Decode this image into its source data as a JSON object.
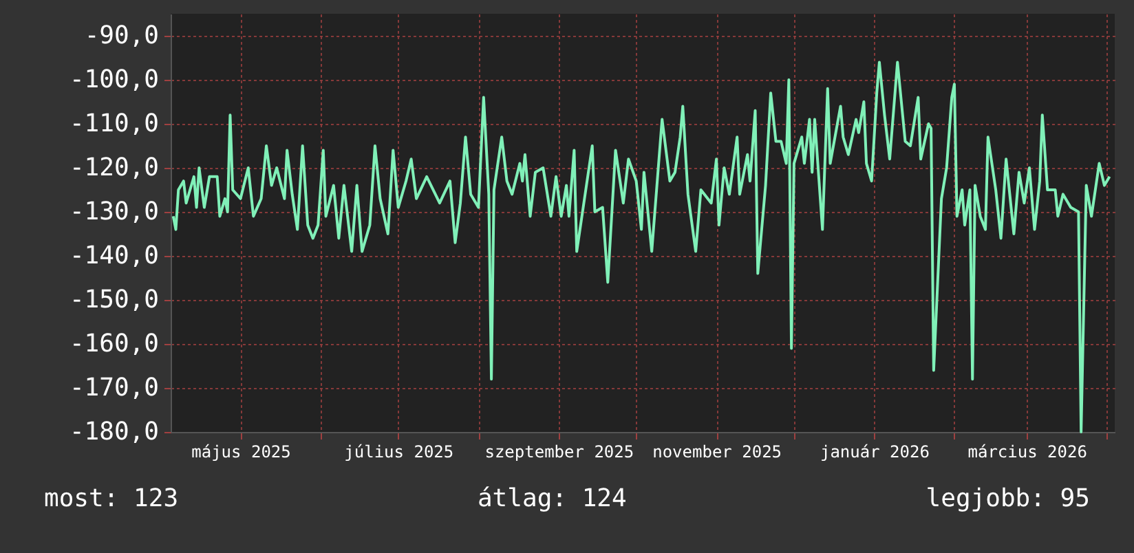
{
  "chart_data": {
    "type": "line",
    "grid": true,
    "marker": "none",
    "line_style": "solid",
    "xlim": [
      "2025-04-04",
      "2026-04-04"
    ],
    "xticks": [
      {
        "value": "2025-05-01",
        "label": "május 2025"
      },
      {
        "value": "2025-06-01",
        "label": null
      },
      {
        "value": "2025-07-01",
        "label": "július 2025"
      },
      {
        "value": "2025-08-01",
        "label": null
      },
      {
        "value": "2025-09-01",
        "label": "szeptember 2025"
      },
      {
        "value": "2025-10-01",
        "label": null
      },
      {
        "value": "2025-11-01",
        "label": "november 2025"
      },
      {
        "value": "2025-12-01",
        "label": null
      },
      {
        "value": "2026-01-01",
        "label": "január 2026"
      },
      {
        "value": "2026-02-01",
        "label": null
      },
      {
        "value": "2026-03-01",
        "label": "március 2026"
      },
      {
        "value": "2026-04-01",
        "label": null
      }
    ],
    "ylim": [
      -180,
      -85
    ],
    "yticks": [
      {
        "value": -180,
        "label": "-180,0"
      },
      {
        "value": -170,
        "label": "-170,0"
      },
      {
        "value": -160,
        "label": "-160,0"
      },
      {
        "value": -150,
        "label": "-150,0"
      },
      {
        "value": -140,
        "label": "-140,0"
      },
      {
        "value": -130,
        "label": "-130,0"
      },
      {
        "value": -120,
        "label": "-120,0"
      },
      {
        "value": -110,
        "label": "-110,0"
      },
      {
        "value": -100,
        "label": "-100,0"
      },
      {
        "value": -90,
        "label": "-90,0"
      }
    ],
    "annotations": [
      "most: 123",
      "átlag: 124",
      "legjobb: 95"
    ],
    "series": [
      {
        "color": "#80f0b8",
        "x": [
          "2025-04-05",
          "2025-04-06",
          "2025-04-07",
          "2025-04-09",
          "2025-04-10",
          "2025-04-13",
          "2025-04-14",
          "2025-04-15",
          "2025-04-17",
          "2025-04-19",
          "2025-04-22",
          "2025-04-23",
          "2025-04-25",
          "2025-04-26",
          "2025-04-27",
          "2025-04-28",
          "2025-05-01",
          "2025-05-04",
          "2025-05-06",
          "2025-05-09",
          "2025-05-11",
          "2025-05-13",
          "2025-05-15",
          "2025-05-18",
          "2025-05-19",
          "2025-05-21",
          "2025-05-23",
          "2025-05-25",
          "2025-05-27",
          "2025-05-29",
          "2025-05-31",
          "2025-06-02",
          "2025-06-03",
          "2025-06-06",
          "2025-06-08",
          "2025-06-10",
          "2025-06-13",
          "2025-06-15",
          "2025-06-17",
          "2025-06-20",
          "2025-06-22",
          "2025-06-24",
          "2025-06-27",
          "2025-06-29",
          "2025-07-01",
          "2025-07-04",
          "2025-07-06",
          "2025-07-08",
          "2025-07-12",
          "2025-07-17",
          "2025-07-21",
          "2025-07-23",
          "2025-07-25",
          "2025-07-27",
          "2025-07-29",
          "2025-08-01",
          "2025-08-03",
          "2025-08-05",
          "2025-08-06",
          "2025-08-07",
          "2025-08-10",
          "2025-08-12",
          "2025-08-14",
          "2025-08-17",
          "2025-08-18",
          "2025-08-19",
          "2025-08-21",
          "2025-08-23",
          "2025-08-26",
          "2025-08-29",
          "2025-08-31",
          "2025-09-02",
          "2025-09-04",
          "2025-09-05",
          "2025-09-07",
          "2025-09-08",
          "2025-09-11",
          "2025-09-14",
          "2025-09-15",
          "2025-09-18",
          "2025-09-20",
          "2025-09-23",
          "2025-09-26",
          "2025-09-28",
          "2025-10-01",
          "2025-10-03",
          "2025-10-04",
          "2025-10-07",
          "2025-10-09",
          "2025-10-11",
          "2025-10-14",
          "2025-10-16",
          "2025-10-18",
          "2025-10-19",
          "2025-10-21",
          "2025-10-24",
          "2025-10-26",
          "2025-10-30",
          "2025-11-01",
          "2025-11-02",
          "2025-11-04",
          "2025-11-06",
          "2025-11-09",
          "2025-11-10",
          "2025-11-13",
          "2025-11-14",
          "2025-11-16",
          "2025-11-17",
          "2025-11-20",
          "2025-11-22",
          "2025-11-24",
          "2025-11-26",
          "2025-11-28",
          "2025-11-29",
          "2025-11-30",
          "2025-12-01",
          "2025-12-04",
          "2025-12-05",
          "2025-12-07",
          "2025-12-08",
          "2025-12-09",
          "2025-12-12",
          "2025-12-14",
          "2025-12-15",
          "2025-12-19",
          "2025-12-20",
          "2025-12-22",
          "2025-12-25",
          "2025-12-26",
          "2025-12-28",
          "2025-12-29",
          "2025-12-31",
          "2026-01-02",
          "2026-01-03",
          "2026-01-05",
          "2026-01-07",
          "2026-01-10",
          "2026-01-13",
          "2026-01-15",
          "2026-01-18",
          "2026-01-19",
          "2026-01-22",
          "2026-01-23",
          "2026-01-24",
          "2026-01-27",
          "2026-01-29",
          "2026-01-31",
          "2026-02-01",
          "2026-02-02",
          "2026-02-04",
          "2026-02-05",
          "2026-02-07",
          "2026-02-08",
          "2026-02-09",
          "2026-02-11",
          "2026-02-13",
          "2026-02-14",
          "2026-02-17",
          "2026-02-19",
          "2026-02-21",
          "2026-02-24",
          "2026-02-26",
          "2026-02-28",
          "2026-03-02",
          "2026-03-04",
          "2026-03-06",
          "2026-03-07",
          "2026-03-09",
          "2026-03-12",
          "2026-03-13",
          "2026-03-15",
          "2026-03-18",
          "2026-03-21",
          "2026-03-22",
          "2026-03-24",
          "2026-03-26",
          "2026-03-29",
          "2026-03-31",
          "2026-04-02"
        ],
        "values": [
          -131,
          -134,
          -125,
          -123,
          -128,
          -122,
          -129,
          -120,
          -129,
          -122,
          -122,
          -131,
          -127,
          -130,
          -108,
          -125,
          -127,
          -120,
          -131,
          -127,
          -115,
          -124,
          -120,
          -127,
          -116,
          -126,
          -134,
          -115,
          -133,
          -136,
          -133,
          -116,
          -131,
          -124,
          -136,
          -124,
          -139,
          -124,
          -139,
          -133,
          -115,
          -127,
          -135,
          -116,
          -129,
          -123,
          -118,
          -127,
          -122,
          -128,
          -123,
          -137,
          -128,
          -113,
          -126,
          -129,
          -104,
          -126,
          -168,
          -125,
          -113,
          -123,
          -126,
          -119,
          -123,
          -117,
          -131,
          -121,
          -120,
          -131,
          -122,
          -131,
          -124,
          -131,
          -116,
          -139,
          -127,
          -115,
          -130,
          -129,
          -146,
          -116,
          -128,
          -118,
          -123,
          -134,
          -121,
          -139,
          -124,
          -109,
          -123,
          -121,
          -113,
          -106,
          -126,
          -139,
          -125,
          -128,
          -118,
          -133,
          -120,
          -126,
          -113,
          -126,
          -117,
          -123,
          -107,
          -144,
          -124,
          -103,
          -114,
          -114,
          -119,
          -100,
          -161,
          -119,
          -113,
          -119,
          -109,
          -121,
          -109,
          -134,
          -102,
          -119,
          -106,
          -113,
          -117,
          -109,
          -112,
          -105,
          -119,
          -123,
          -103,
          -96,
          -108,
          -118,
          -96,
          -114,
          -115,
          -104,
          -118,
          -110,
          -111,
          -166,
          -127,
          -120,
          -104,
          -101,
          -131,
          -125,
          -133,
          -125,
          -168,
          -124,
          -131,
          -134,
          -113,
          -125,
          -136,
          -118,
          -135,
          -121,
          -128,
          -120,
          -134,
          -123,
          -108,
          -125,
          -125,
          -131,
          -126,
          -129,
          -130,
          -180,
          -124,
          -131,
          -119,
          -124,
          -122
        ]
      }
    ]
  }
}
